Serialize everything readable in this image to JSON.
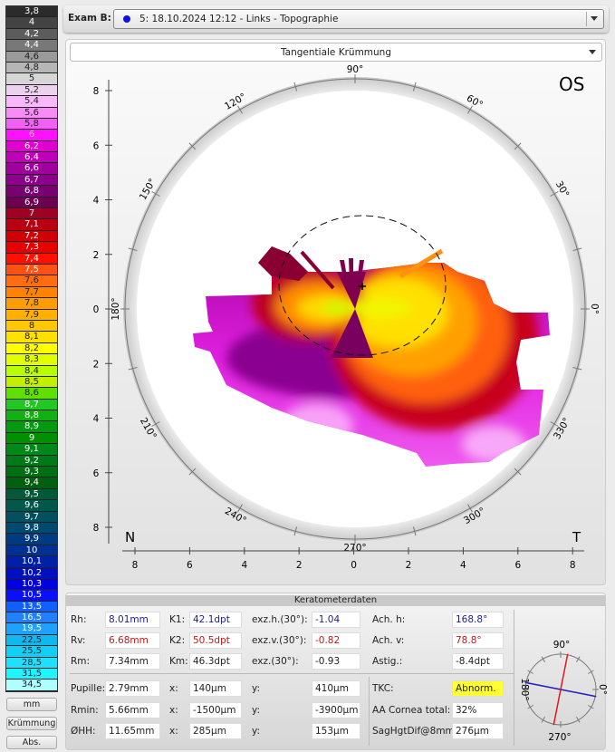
{
  "scale": {
    "unit": "mm",
    "items": [
      {
        "v": "3,8",
        "c": "#2b2b2b",
        "t": "#fff"
      },
      {
        "v": "4",
        "c": "#444444",
        "t": "#fff"
      },
      {
        "v": "4,2",
        "c": "#5c5c5c",
        "t": "#fff"
      },
      {
        "v": "4,4",
        "c": "#787878",
        "t": "#fff"
      },
      {
        "v": "4,6",
        "c": "#9a9a9a",
        "t": "#222"
      },
      {
        "v": "4,8",
        "c": "#b6b6b6",
        "t": "#222"
      },
      {
        "v": "5",
        "c": "#d6d6d6",
        "t": "#222"
      },
      {
        "v": "5,2",
        "c": "#ecd2ee",
        "t": "#222"
      },
      {
        "v": "5,4",
        "c": "#f9b8f9",
        "t": "#222"
      },
      {
        "v": "5,6",
        "c": "#f78cf7",
        "t": "#222"
      },
      {
        "v": "5,8",
        "c": "#f060f2",
        "t": "#222"
      },
      {
        "v": "6",
        "c": "#ff10ff",
        "t": "#fbb"
      },
      {
        "v": "6,2",
        "c": "#e000d0",
        "t": "#fff"
      },
      {
        "v": "6,4",
        "c": "#c000b8",
        "t": "#fff"
      },
      {
        "v": "6,6",
        "c": "#a0009c",
        "t": "#fff"
      },
      {
        "v": "6,7",
        "c": "#8c008c",
        "t": "#fff"
      },
      {
        "v": "6,8",
        "c": "#7a0072",
        "t": "#fff"
      },
      {
        "v": "6,9",
        "c": "#6e0052",
        "t": "#fff"
      },
      {
        "v": "7",
        "c": "#a00022",
        "t": "#fff"
      },
      {
        "v": "7,1",
        "c": "#b80012",
        "t": "#fff"
      },
      {
        "v": "7,2",
        "c": "#d00004",
        "t": "#fff"
      },
      {
        "v": "7,3",
        "c": "#e80000",
        "t": "#fff"
      },
      {
        "v": "7,4",
        "c": "#ff1000",
        "t": "#fff"
      },
      {
        "v": "7,5",
        "c": "#ff5212",
        "t": "#fff"
      },
      {
        "v": "7,6",
        "c": "#ff6c12",
        "t": "#222"
      },
      {
        "v": "7,7",
        "c": "#ff8200",
        "t": "#222"
      },
      {
        "v": "7,8",
        "c": "#ff9c00",
        "t": "#222"
      },
      {
        "v": "7,9",
        "c": "#ffb000",
        "t": "#222"
      },
      {
        "v": "8",
        "c": "#ffc800",
        "t": "#222"
      },
      {
        "v": "8,1",
        "c": "#ffe000",
        "t": "#222"
      },
      {
        "v": "8,2",
        "c": "#ffff00",
        "t": "#222"
      },
      {
        "v": "8,3",
        "c": "#e2ff00",
        "t": "#222"
      },
      {
        "v": "8,4",
        "c": "#b8ff00",
        "t": "#222"
      },
      {
        "v": "8,5",
        "c": "#c4f000",
        "t": "#222"
      },
      {
        "v": "8,6",
        "c": "#60e000",
        "t": "#222"
      },
      {
        "v": "8,7",
        "c": "#22c822",
        "t": "#fff"
      },
      {
        "v": "8,8",
        "c": "#12b012",
        "t": "#fff"
      },
      {
        "v": "8,9",
        "c": "#009a10",
        "t": "#fff"
      },
      {
        "v": "9",
        "c": "#009000",
        "t": "#fff"
      },
      {
        "v": "9,1",
        "c": "#008818",
        "t": "#fff"
      },
      {
        "v": "9,2",
        "c": "#007a18",
        "t": "#fff"
      },
      {
        "v": "9,3",
        "c": "#006e12",
        "t": "#fff"
      },
      {
        "v": "9,4",
        "c": "#006010",
        "t": "#fff"
      },
      {
        "v": "9,5",
        "c": "#005a3a",
        "t": "#fff"
      },
      {
        "v": "9,6",
        "c": "#00584a",
        "t": "#fff"
      },
      {
        "v": "9,7",
        "c": "#005060",
        "t": "#fff"
      },
      {
        "v": "9,8",
        "c": "#004a72",
        "t": "#fff"
      },
      {
        "v": "9,9",
        "c": "#003a82",
        "t": "#fff"
      },
      {
        "v": "10",
        "c": "#003092",
        "t": "#fff"
      },
      {
        "v": "10,1",
        "c": "#0020a8",
        "t": "#fff"
      },
      {
        "v": "10,2",
        "c": "#0010c0",
        "t": "#fff"
      },
      {
        "v": "10,3",
        "c": "#0000e0",
        "t": "#fff"
      },
      {
        "v": "10,5",
        "c": "#0a10ff",
        "t": "#fff"
      },
      {
        "v": "13,5",
        "c": "#1060ff",
        "t": "#fff"
      },
      {
        "v": "16,5",
        "c": "#2080ff",
        "t": "#fff"
      },
      {
        "v": "19,5",
        "c": "#20a0ff",
        "t": "#fff"
      },
      {
        "v": "22,5",
        "c": "#10b8f0",
        "t": "#123"
      },
      {
        "v": "25,5",
        "c": "#10d0f8",
        "t": "#123"
      },
      {
        "v": "28,5",
        "c": "#20e0ff",
        "t": "#123"
      },
      {
        "v": "31,5",
        "c": "#20f4ff",
        "t": "#123"
      },
      {
        "v": "34,5",
        "c": "#b0ffff",
        "t": "#123"
      }
    ],
    "buttons": {
      "unit": "mm",
      "mode": "Krümmung",
      "ref": "Abs."
    }
  },
  "exam": {
    "label": "Exam B:",
    "value": "5: 18.10.2024 12:12 - Links - Topographie",
    "dot_color": "#1010e0"
  },
  "map": {
    "type_dropdown": "Tangentiale Krümmung",
    "eye": "OS",
    "nasal": "N",
    "temporal": "T",
    "y_ticks": [
      "8",
      "6",
      "4",
      "2",
      "0",
      "2",
      "4",
      "6",
      "8"
    ],
    "x_ticks": [
      "8",
      "6",
      "4",
      "2",
      "0",
      "2",
      "4",
      "6",
      "8"
    ],
    "angle_labels": [
      "0°",
      "30°",
      "60°",
      "90°",
      "120°",
      "150°",
      "180°",
      "210°",
      "240°",
      "270°",
      "300°",
      "330°"
    ]
  },
  "kerato": {
    "title": "Keratometerdaten",
    "rows1": [
      [
        {
          "l": "Rh:",
          "v": "8.01mm",
          "c": "blue"
        },
        {
          "l": "K1:",
          "v": "42.1dpt",
          "c": "blue"
        },
        {
          "l": "exz.h.(30°):",
          "v": "-1.04",
          "c": "blue"
        },
        {
          "l": "Ach. h:",
          "v": "168.8°",
          "c": "blue"
        }
      ],
      [
        {
          "l": "Rv:",
          "v": "6.68mm",
          "c": "red"
        },
        {
          "l": "K2:",
          "v": "50.5dpt",
          "c": "red"
        },
        {
          "l": "exz.v.(30°):",
          "v": "-0.82",
          "c": "red"
        },
        {
          "l": "Ach. v:",
          "v": "78.8°",
          "c": "red"
        }
      ],
      [
        {
          "l": "Rm:",
          "v": "7.34mm",
          "c": ""
        },
        {
          "l": "Km:",
          "v": "46.3dpt",
          "c": ""
        },
        {
          "l": "exz.(30°):",
          "v": "-0.93",
          "c": ""
        },
        {
          "l": "Astig.:",
          "v": "-8.4dpt",
          "c": ""
        }
      ]
    ],
    "rows2": [
      [
        {
          "l": "Pupille:",
          "v": "2.79mm"
        },
        {
          "l": "x:",
          "v": "140µm"
        },
        {
          "l": "y:",
          "v": "410µm"
        },
        {
          "l": "TKC:",
          "v": "Abnorm.",
          "hl": "#ffff30"
        }
      ],
      [
        {
          "l": "Rmin:",
          "v": "5.66mm"
        },
        {
          "l": "x:",
          "v": "-1500µm"
        },
        {
          "l": "y:",
          "v": "-3900µm"
        },
        {
          "l": "AA Cornea total:",
          "v": "32%"
        }
      ],
      [
        {
          "l": "ØHH:",
          "v": "11.65mm"
        },
        {
          "l": "x:",
          "v": "285µm"
        },
        {
          "l": "y:",
          "v": "153µm"
        },
        {
          "l": "SagHgtDif@8mm:",
          "v": "276µm"
        }
      ]
    ],
    "axis_compass": {
      "labels": {
        "top": "90°",
        "bottom": "270°",
        "left": "180°",
        "right": "0°"
      },
      "flat_axis_deg": 168.8,
      "steep_axis_deg": 78.8,
      "flat_color": "#1c1cc0",
      "steep_color": "#e01818"
    }
  }
}
